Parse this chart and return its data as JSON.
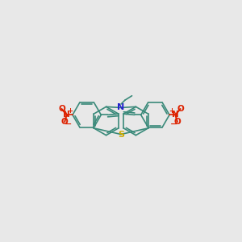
{
  "bg_color": "#e8e8e8",
  "bond_color": "#3a8a7a",
  "n_color": "#2222cc",
  "s_color": "#ccaa00",
  "o_color": "#dd2200",
  "bond_lw": 1.2,
  "figsize": [
    3.0,
    3.0
  ],
  "dpi": 100,
  "xlim": [
    -1.0,
    11.0
  ],
  "ylim": [
    1.5,
    8.5
  ]
}
